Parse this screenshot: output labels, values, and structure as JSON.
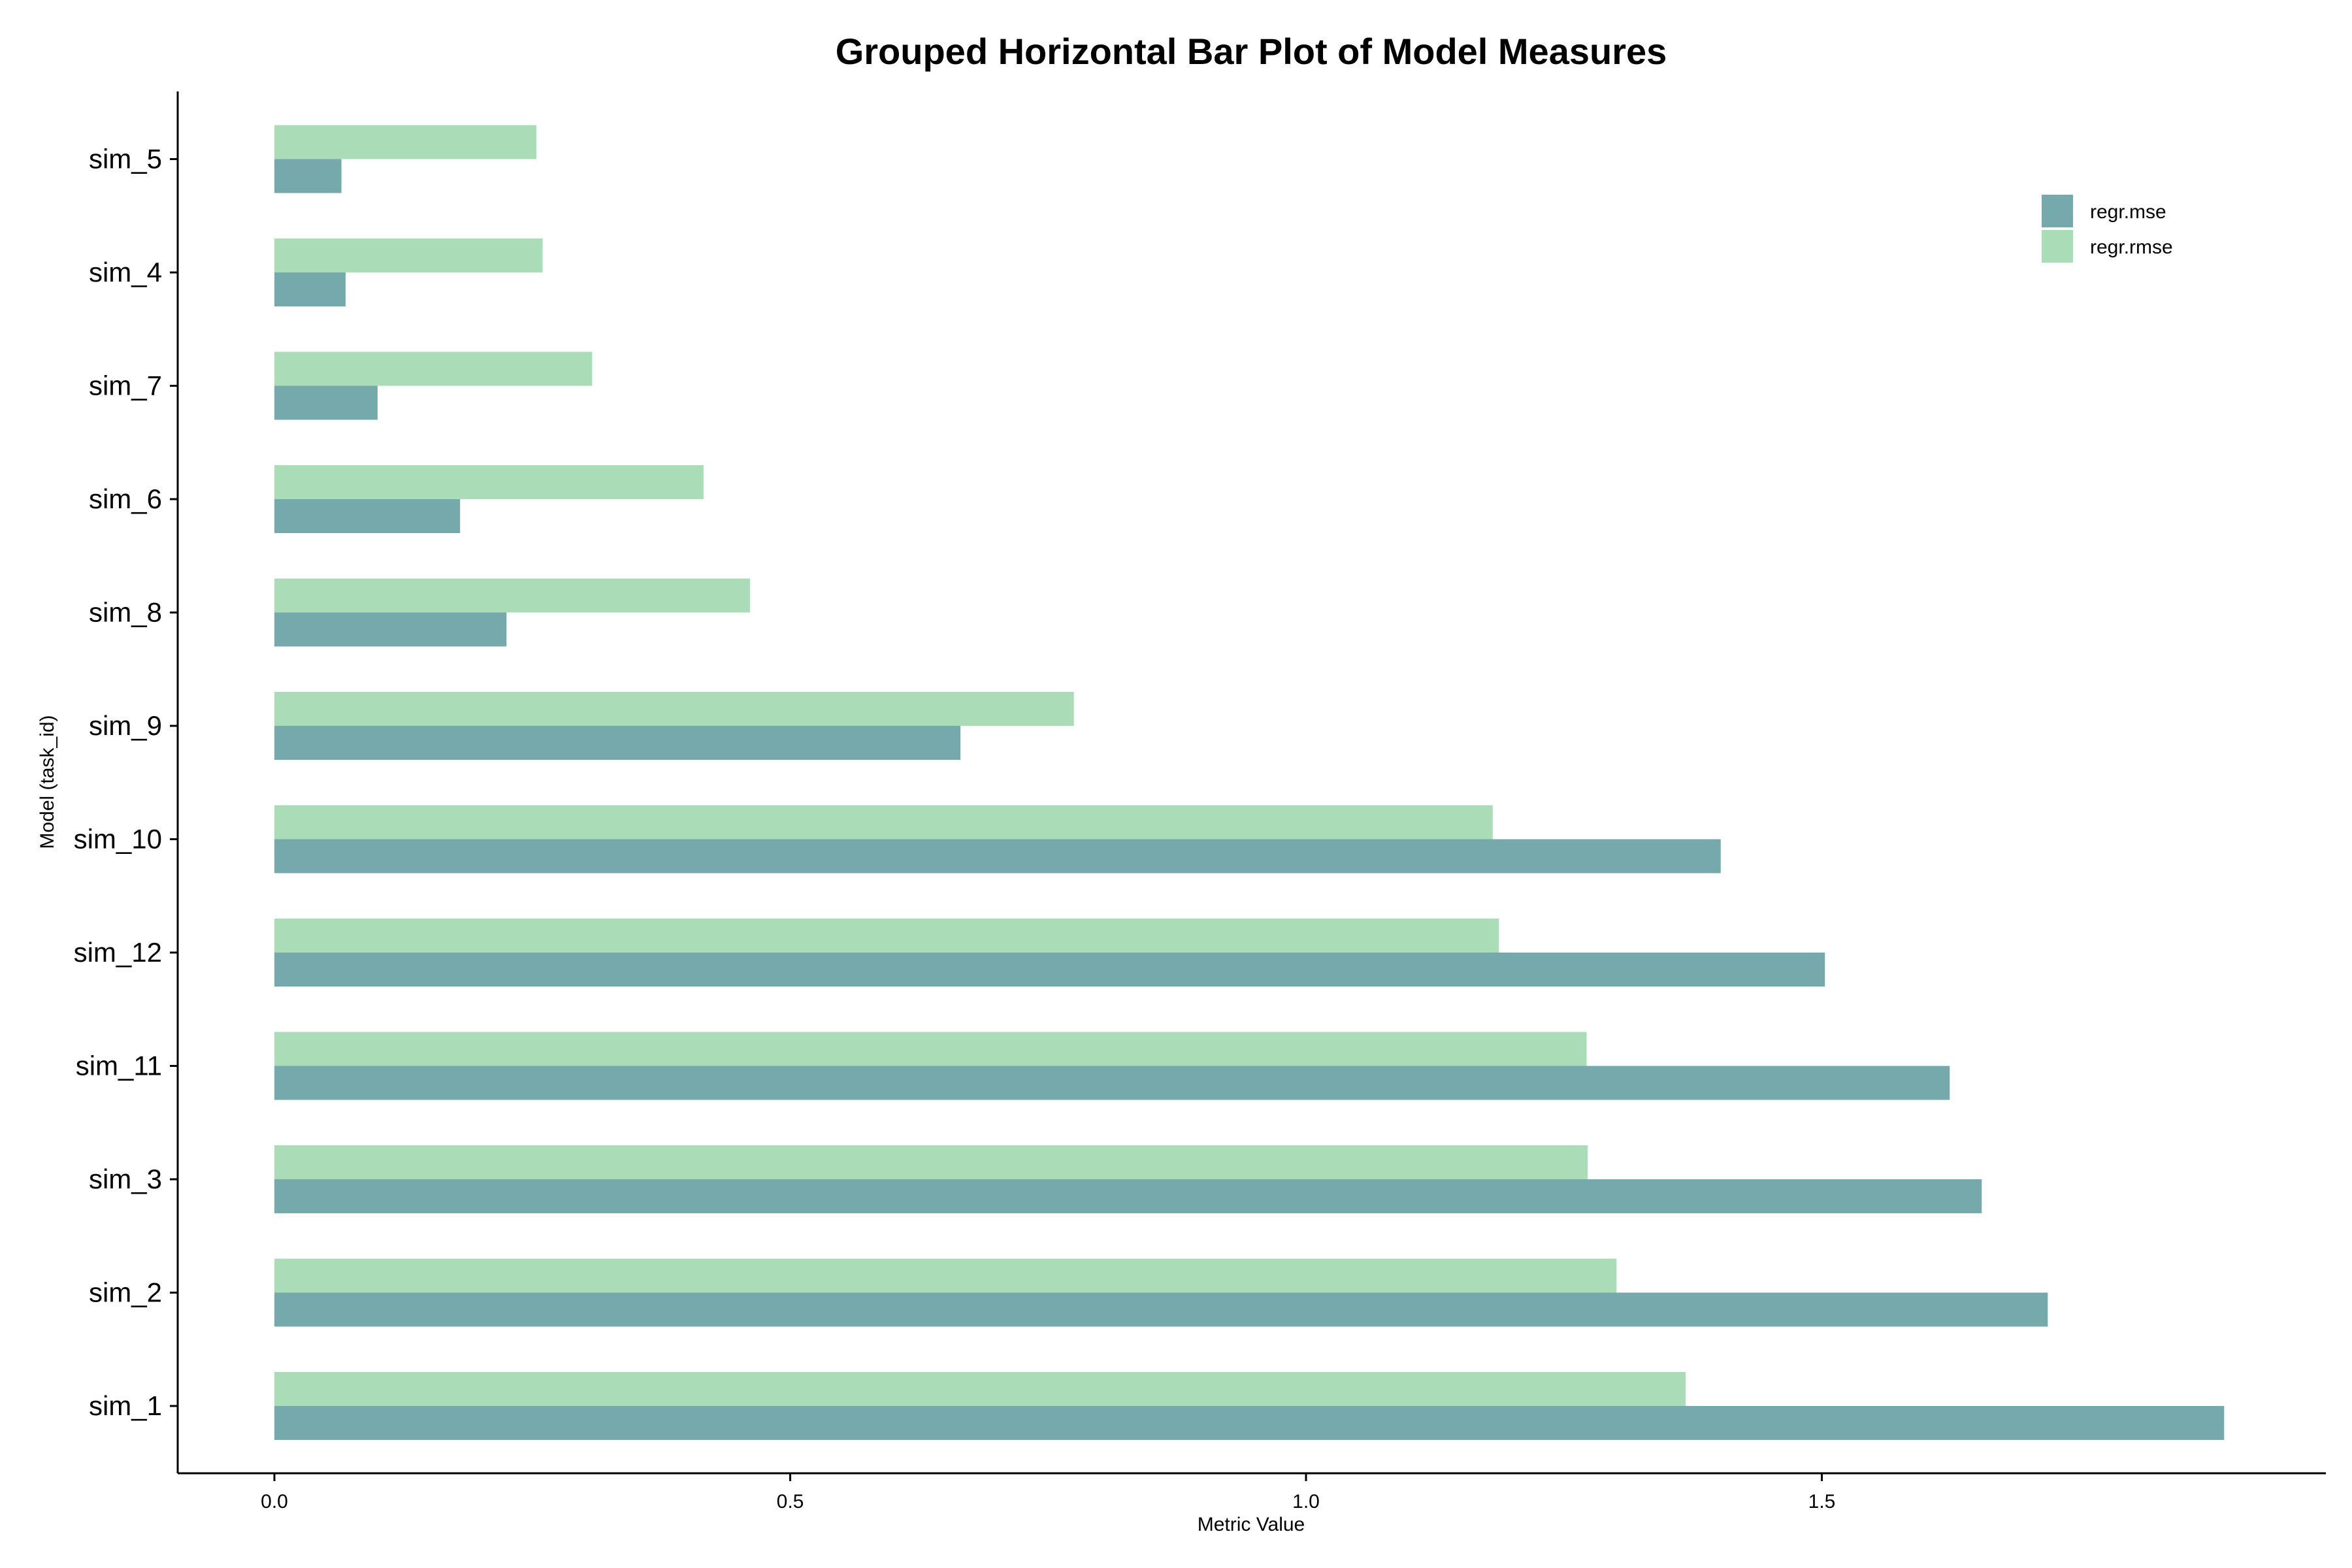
{
  "colors": {
    "regr_mse": "#75a9ab",
    "regr_rmse": "#aadcb7",
    "axis": "#000000",
    "background": "#ffffff"
  },
  "chart_data": {
    "type": "bar",
    "orientation": "horizontal",
    "title": "Grouped Horizontal Bar Plot of Model Measures",
    "xlabel": "Metric Value",
    "ylabel": "Model (task_id)",
    "xlim": [
      -0.095,
      1.99
    ],
    "xticks": [
      0.0,
      0.5,
      1.0,
      1.5
    ],
    "xtick_labels": [
      "0.0",
      "0.5",
      "1.0",
      "1.5"
    ],
    "grid": false,
    "legend_position": "top-right",
    "categories": [
      "sim_1",
      "sim_2",
      "sim_3",
      "sim_11",
      "sim_12",
      "sim_10",
      "sim_9",
      "sim_8",
      "sim_6",
      "sim_7",
      "sim_4",
      "sim_5"
    ],
    "series": [
      {
        "name": "regr.mse",
        "values": [
          1.89,
          1.719,
          1.655,
          1.624,
          1.503,
          1.402,
          0.665,
          0.225,
          0.18,
          0.1,
          0.069,
          0.065
        ]
      },
      {
        "name": "regr.rmse",
        "values": [
          1.368,
          1.301,
          1.273,
          1.272,
          1.187,
          1.181,
          0.775,
          0.461,
          0.416,
          0.308,
          0.26,
          0.254
        ]
      }
    ]
  }
}
